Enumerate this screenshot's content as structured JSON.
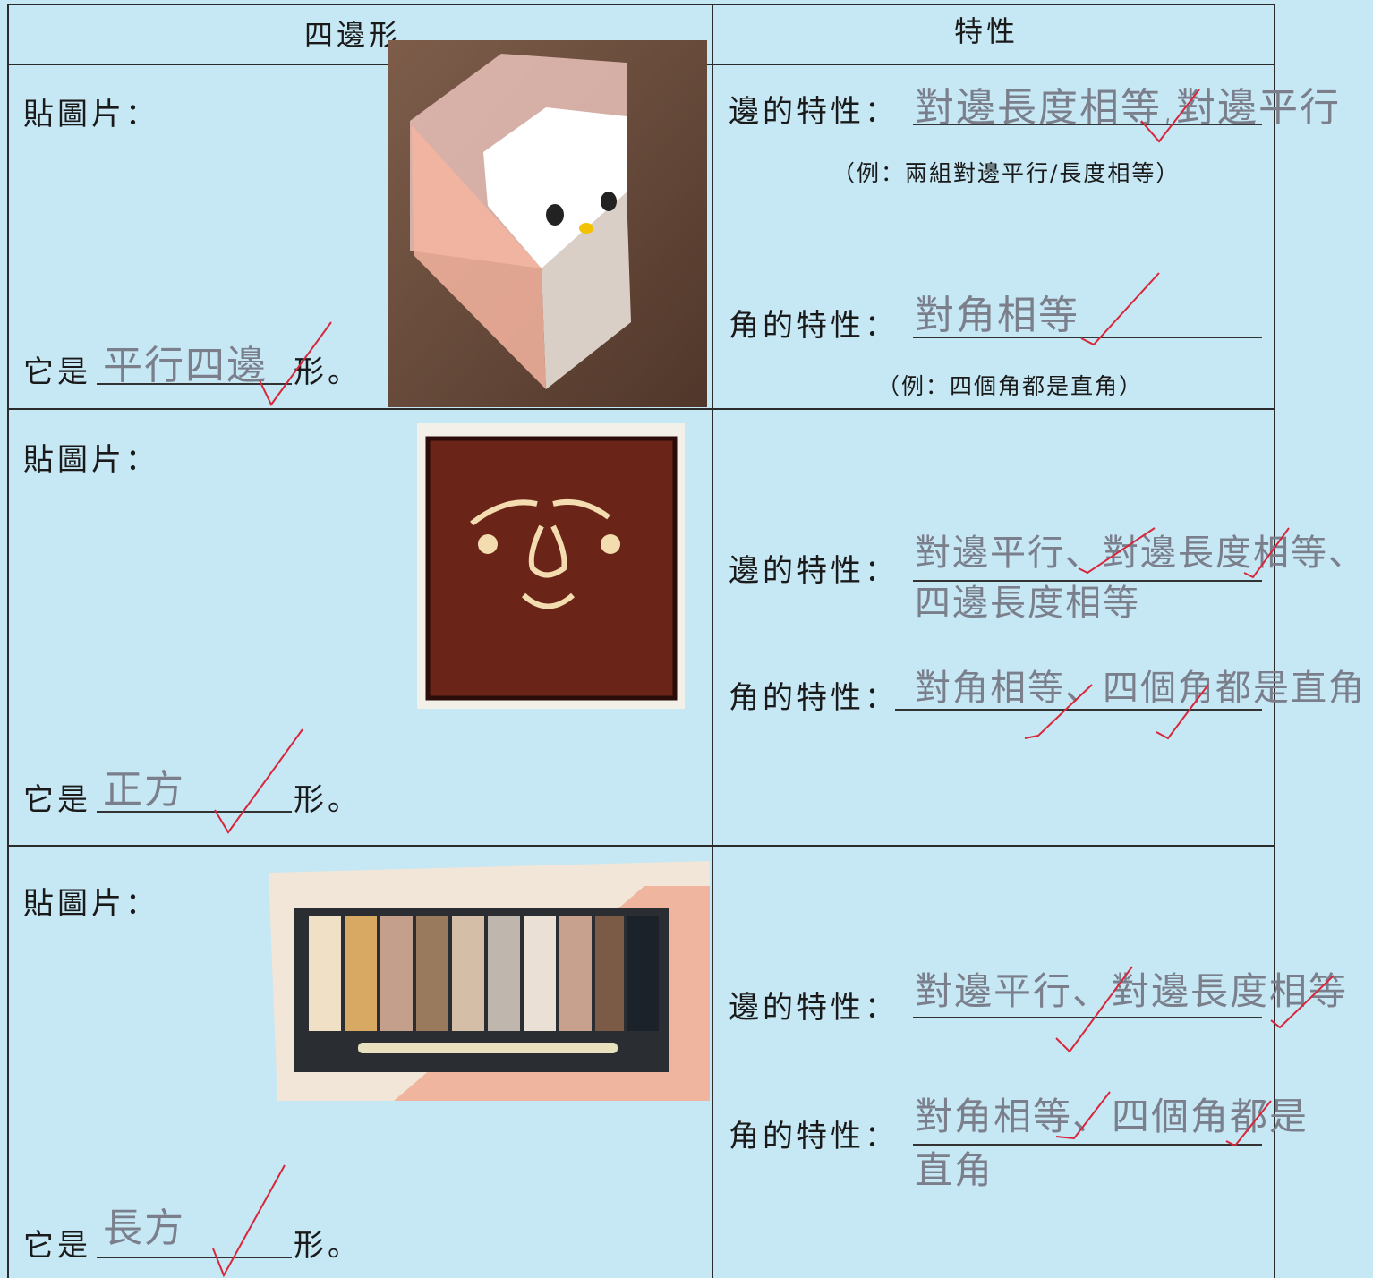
{
  "table": {
    "header": [
      "四邊形",
      "特性"
    ],
    "rows": [
      {
        "paste_label": "貼圖片：",
        "answer_prefix": "它是",
        "answer": "平行四邊",
        "answer_suffix": "形。",
        "sides_label": "邊的特性：",
        "sides_answer": "對邊長度相等,對邊平行",
        "sides_hint": "（例：兩組對邊平行/長度相等）",
        "angles_label": "角的特性：",
        "angles_answer": "對角相等",
        "angles_hint": "（例：四個角都是直角）"
      },
      {
        "paste_label": "貼圖片：",
        "answer_prefix": "它是",
        "answer": "正方",
        "answer_suffix": "形。",
        "sides_label": "邊的特性：",
        "sides_answer": "對邊平行、對邊長度相等、四邊長度相等",
        "angles_label": "角的特性：",
        "angles_answer": "對角相等、四個角都是直角"
      },
      {
        "paste_label": "貼圖片：",
        "answer_prefix": "它是",
        "answer": "長方",
        "answer_suffix": "形。",
        "sides_label": "邊的特性：",
        "sides_answer": "對邊平行、對邊長度相等",
        "angles_label": "角的特性：",
        "angles_answer": "對角相等、四個角都是直角"
      }
    ]
  }
}
